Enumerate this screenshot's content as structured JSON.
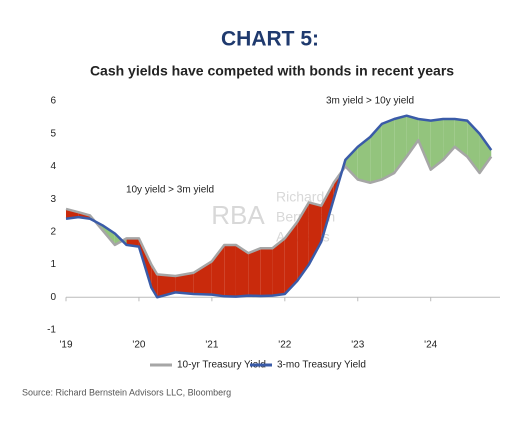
{
  "chart_data": {
    "type": "line",
    "title": "CHART 5:",
    "subtitle": "Cash yields have competed with bonds in recent years",
    "annotations": [
      "3m yield > 10y yield",
      "10y yield > 3m yield"
    ],
    "watermark": {
      "logo": "RBA",
      "lines": [
        "Richard",
        "Bernstein",
        "Advisors"
      ]
    },
    "source": "Source: Richard Bernstein Advisors LLC, Bloomberg",
    "x": [
      2019.0,
      2019.17,
      2019.33,
      2019.5,
      2019.67,
      2019.83,
      2020.0,
      2020.17,
      2020.25,
      2020.5,
      2020.75,
      2021.0,
      2021.17,
      2021.33,
      2021.5,
      2021.67,
      2021.83,
      2022.0,
      2022.17,
      2022.33,
      2022.5,
      2022.67,
      2022.83,
      2023.0,
      2023.17,
      2023.33,
      2023.5,
      2023.67,
      2023.83,
      2024.0,
      2024.17,
      2024.33,
      2024.5,
      2024.67,
      2024.83
    ],
    "series": [
      {
        "name": "10-yr Treasury Yield",
        "color": "#a6a6a6",
        "values": [
          2.7,
          2.6,
          2.5,
          2.05,
          1.6,
          1.8,
          1.8,
          1.0,
          0.7,
          0.65,
          0.75,
          1.1,
          1.6,
          1.6,
          1.35,
          1.5,
          1.5,
          1.8,
          2.3,
          2.9,
          2.8,
          3.5,
          4.0,
          3.6,
          3.5,
          3.6,
          3.8,
          4.3,
          4.8,
          3.9,
          4.2,
          4.6,
          4.3,
          3.8,
          4.3
        ]
      },
      {
        "name": "3-mo Treasury Yield",
        "color": "#3a5ba8",
        "values": [
          2.4,
          2.45,
          2.4,
          2.2,
          1.95,
          1.6,
          1.55,
          0.3,
          0.0,
          0.15,
          0.1,
          0.08,
          0.03,
          0.02,
          0.05,
          0.04,
          0.05,
          0.1,
          0.5,
          1.0,
          1.7,
          3.0,
          4.2,
          4.6,
          4.9,
          5.3,
          5.45,
          5.55,
          5.45,
          5.4,
          5.45,
          5.45,
          5.4,
          5.0,
          4.5
        ]
      }
    ],
    "spread_colors": [
      "#c92a0c",
      "#93c47d"
    ],
    "xlim": [
      2019,
      2024.95
    ],
    "xticks": [
      {
        "value": 2019,
        "label": "'19"
      },
      {
        "value": 2020,
        "label": "'20"
      },
      {
        "value": 2021,
        "label": "'21"
      },
      {
        "value": 2022,
        "label": "'22"
      },
      {
        "value": 2023,
        "label": "'23"
      },
      {
        "value": 2024,
        "label": "'24"
      }
    ],
    "ylim": [
      -1,
      6
    ],
    "yticks": [
      -1,
      0,
      1,
      2,
      3,
      4,
      5,
      6
    ],
    "grid": false
  }
}
